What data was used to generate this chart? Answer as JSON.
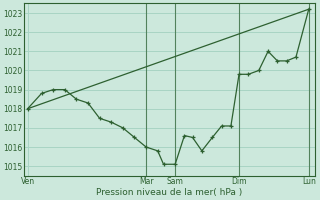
{
  "xlabel": "Pression niveau de la mer( hPa )",
  "background_color": "#cce8dc",
  "grid_color": "#a8d4c4",
  "line_color": "#2d6030",
  "ylim": [
    1014.5,
    1023.5
  ],
  "yticks": [
    1015,
    1016,
    1017,
    1018,
    1019,
    1020,
    1021,
    1022,
    1023
  ],
  "xlim": [
    0,
    25
  ],
  "x_day_labels": [
    "Ven",
    "Mar",
    "Sam",
    "Dim",
    "Lun"
  ],
  "x_day_positions": [
    0.3,
    10.5,
    13.0,
    18.5,
    24.5
  ],
  "x_vline_positions": [
    10.5,
    13.0,
    18.5,
    24.5
  ],
  "line1_x": [
    0.3,
    1.5,
    2.5,
    3.5,
    4.5,
    5.5,
    6.5,
    7.5,
    8.5,
    9.5,
    10.5,
    11.5,
    12.0,
    13.0,
    13.8,
    14.5,
    15.3,
    16.2,
    17.0,
    17.8,
    18.5,
    19.3,
    20.2,
    21.0,
    21.8,
    22.6,
    23.4,
    24.5
  ],
  "line1_y": [
    1018.0,
    1018.8,
    1019.0,
    1019.0,
    1018.5,
    1018.3,
    1017.5,
    1017.3,
    1017.0,
    1016.5,
    1016.0,
    1015.8,
    1015.1,
    1015.1,
    1016.6,
    1016.5,
    1015.8,
    1016.5,
    1017.1,
    1017.1,
    1019.8,
    1019.8,
    1020.0,
    1021.0,
    1020.5,
    1020.5,
    1020.7,
    1023.2
  ],
  "line2_x": [
    0.3,
    24.5
  ],
  "line2_y": [
    1018.0,
    1023.2
  ]
}
